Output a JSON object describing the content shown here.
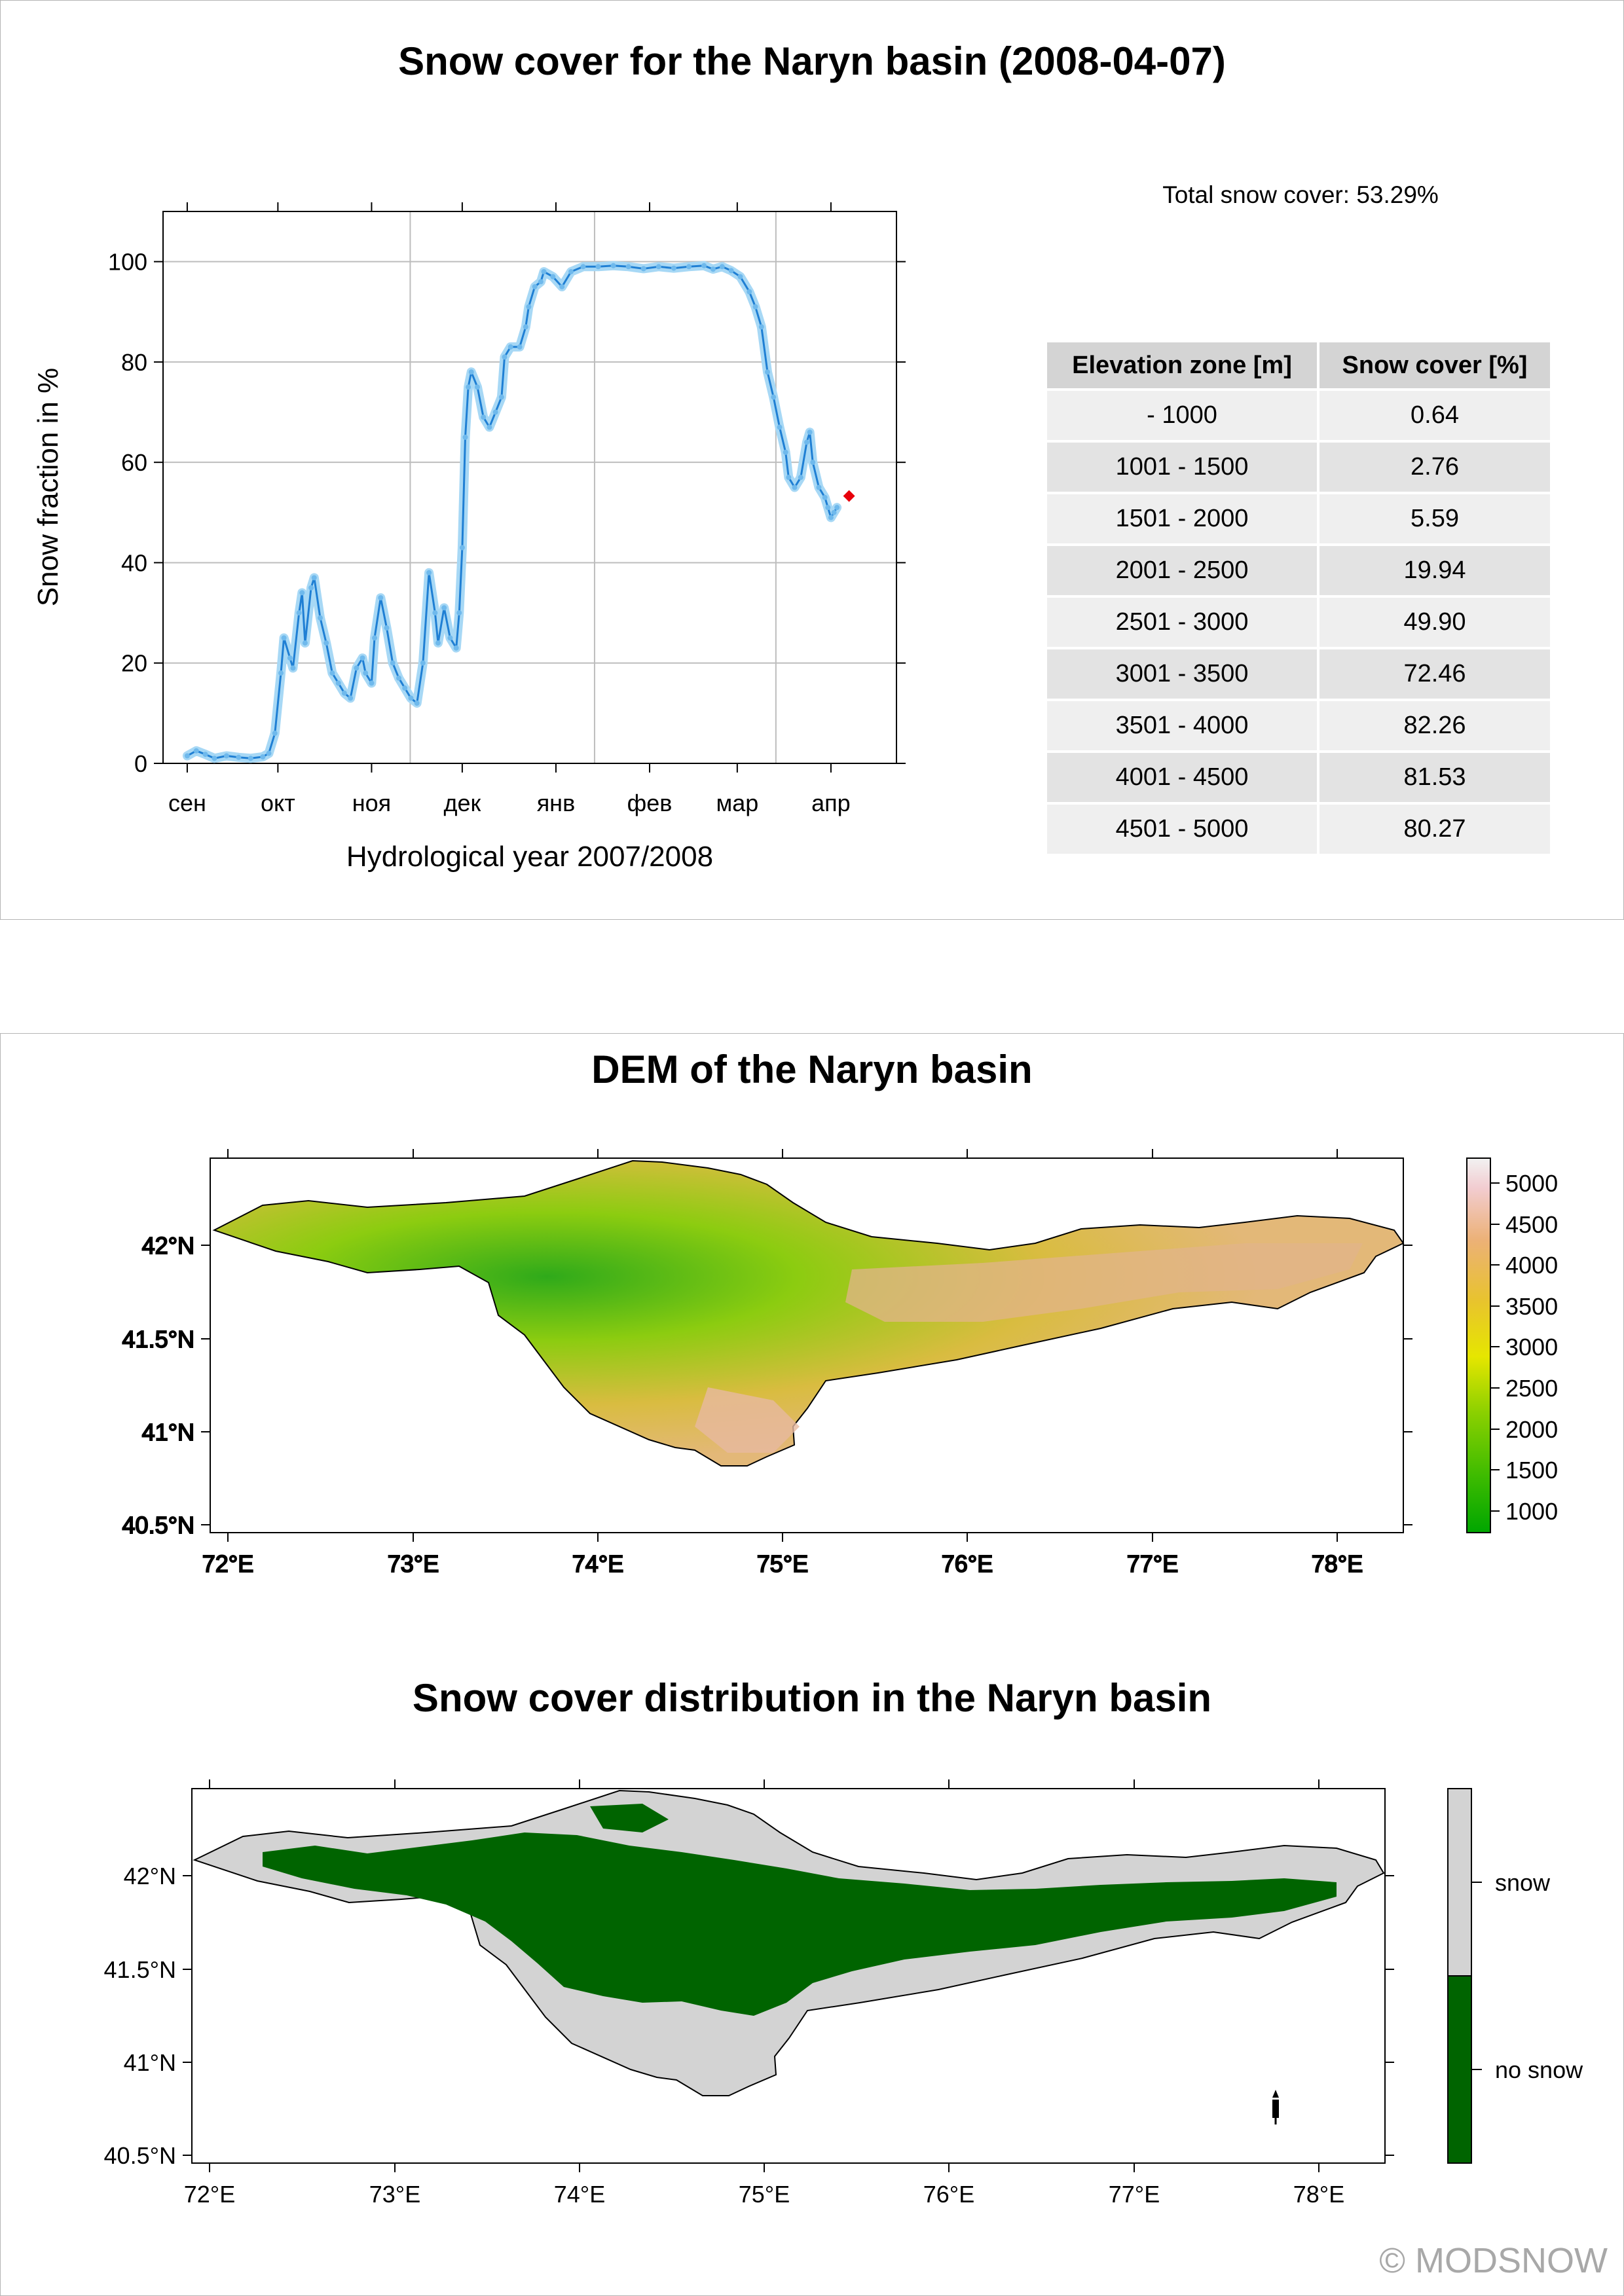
{
  "header": {
    "title": "Snow cover for the Naryn basin (2008-04-07)"
  },
  "summary": {
    "total_snow_cover": "Total snow cover: 53.29%"
  },
  "zone_table": {
    "headers": [
      "Elevation zone [m]",
      "Snow cover [%]"
    ],
    "rows": [
      [
        "- 1000",
        "0.64"
      ],
      [
        "1001 - 1500",
        "2.76"
      ],
      [
        "1501 - 2000",
        "5.59"
      ],
      [
        "2001 - 2500",
        "19.94"
      ],
      [
        "2501 - 3000",
        "49.90"
      ],
      [
        "3001 - 3500",
        "72.46"
      ],
      [
        "3501 - 4000",
        "82.26"
      ],
      [
        "4001 - 4500",
        "81.53"
      ],
      [
        "4501 - 5000",
        "80.27"
      ]
    ]
  },
  "colors": {
    "line": "#1f7fd4",
    "line_halo": "#a7d8f5",
    "current_point": "#e8000b",
    "snow": "#d3d3d3",
    "no_snow": "#006400",
    "panel_border": "#b5b5b5"
  },
  "dem_map": {
    "title": "DEM of the Naryn basin",
    "colorbar_ticks": [
      "5000",
      "4500",
      "4000",
      "3500",
      "3000",
      "2500",
      "2000",
      "1500",
      "1000"
    ]
  },
  "snow_map": {
    "title": "Snow cover distribution in the Naryn basin",
    "legend": [
      "snow",
      "no snow"
    ]
  },
  "map_axes": {
    "x_ticks": [
      "72°E",
      "73°E",
      "74°E",
      "75°E",
      "76°E",
      "77°E",
      "78°E"
    ],
    "y_ticks": [
      "42°N",
      "41.5°N",
      "41°N",
      "40.5°N"
    ]
  },
  "copyright": "© MODSNOW",
  "chart_data": {
    "type": "line",
    "title": "",
    "xlabel": "Hydrological year 2007/2008",
    "ylabel": "Snow fraction in %",
    "x_tick_labels": [
      "сен",
      "окт",
      "ноя",
      "дек",
      "янв",
      "фев",
      "мар",
      "апр"
    ],
    "ylim": [
      0,
      110
    ],
    "y_ticks": [
      0,
      20,
      40,
      60,
      80,
      100
    ],
    "grid": true,
    "current_value": {
      "date": "2008-04-07",
      "value": 53.29
    },
    "series": [
      {
        "points": [
          [
            "2007-09-01",
            1.5
          ],
          [
            "2007-09-04",
            2.5
          ],
          [
            "2007-09-07",
            1.8
          ],
          [
            "2007-09-10",
            1.0
          ],
          [
            "2007-09-14",
            1.5
          ],
          [
            "2007-09-18",
            1.2
          ],
          [
            "2007-09-22",
            1.0
          ],
          [
            "2007-09-26",
            1.3
          ],
          [
            "2007-09-28",
            2.0
          ],
          [
            "2007-09-30",
            6.0
          ],
          [
            "2007-10-02",
            18.0
          ],
          [
            "2007-10-03",
            25.0
          ],
          [
            "2007-10-05",
            21.0
          ],
          [
            "2007-10-06",
            19.0
          ],
          [
            "2007-10-08",
            30.0
          ],
          [
            "2007-10-09",
            34.0
          ],
          [
            "2007-10-10",
            24.0
          ],
          [
            "2007-10-12",
            35.0
          ],
          [
            "2007-10-13",
            37.0
          ],
          [
            "2007-10-15",
            29.0
          ],
          [
            "2007-10-17",
            24.0
          ],
          [
            "2007-10-19",
            18.0
          ],
          [
            "2007-10-21",
            16.0
          ],
          [
            "2007-10-23",
            14.0
          ],
          [
            "2007-10-25",
            13.0
          ],
          [
            "2007-10-27",
            19.0
          ],
          [
            "2007-10-29",
            21.0
          ],
          [
            "2007-10-30",
            18.0
          ],
          [
            "2007-11-01",
            16.0
          ],
          [
            "2007-11-02",
            25.0
          ],
          [
            "2007-11-04",
            33.0
          ],
          [
            "2007-11-06",
            27.0
          ],
          [
            "2007-11-08",
            20.0
          ],
          [
            "2007-11-10",
            17.0
          ],
          [
            "2007-11-12",
            15.0
          ],
          [
            "2007-11-14",
            13.0
          ],
          [
            "2007-11-16",
            12.0
          ],
          [
            "2007-11-18",
            20.0
          ],
          [
            "2007-11-20",
            38.0
          ],
          [
            "2007-11-22",
            30.0
          ],
          [
            "2007-11-23",
            24.0
          ],
          [
            "2007-11-25",
            31.0
          ],
          [
            "2007-11-27",
            25.0
          ],
          [
            "2007-11-29",
            23.0
          ],
          [
            "2007-11-30",
            30.0
          ],
          [
            "2007-12-01",
            43.0
          ],
          [
            "2007-12-02",
            65.0
          ],
          [
            "2007-12-03",
            75.0
          ],
          [
            "2007-12-04",
            78.0
          ],
          [
            "2007-12-06",
            75.0
          ],
          [
            "2007-12-08",
            69.0
          ],
          [
            "2007-12-10",
            67.0
          ],
          [
            "2007-12-12",
            70.0
          ],
          [
            "2007-12-14",
            73.0
          ],
          [
            "2007-12-15",
            81.0
          ],
          [
            "2007-12-17",
            83.0
          ],
          [
            "2007-12-20",
            83.0
          ],
          [
            "2007-12-22",
            87.0
          ],
          [
            "2007-12-23",
            91.0
          ],
          [
            "2007-12-25",
            95.0
          ],
          [
            "2007-12-27",
            96.0
          ],
          [
            "2007-12-28",
            98.0
          ],
          [
            "2007-12-31",
            97.0
          ],
          [
            "2008-01-03",
            95.0
          ],
          [
            "2008-01-06",
            98.0
          ],
          [
            "2008-01-10",
            99.0
          ],
          [
            "2008-01-15",
            99.0
          ],
          [
            "2008-01-20",
            99.2
          ],
          [
            "2008-01-25",
            99.0
          ],
          [
            "2008-01-30",
            98.6
          ],
          [
            "2008-02-04",
            99.0
          ],
          [
            "2008-02-09",
            98.7
          ],
          [
            "2008-02-14",
            99.0
          ],
          [
            "2008-02-19",
            99.2
          ],
          [
            "2008-02-22",
            98.5
          ],
          [
            "2008-02-25",
            99.0
          ],
          [
            "2008-02-28",
            98.2
          ],
          [
            "2008-03-02",
            97.0
          ],
          [
            "2008-03-05",
            94.0
          ],
          [
            "2008-03-07",
            91.0
          ],
          [
            "2008-03-09",
            87.0
          ],
          [
            "2008-03-11",
            78.0
          ],
          [
            "2008-03-13",
            73.0
          ],
          [
            "2008-03-15",
            67.0
          ],
          [
            "2008-03-17",
            62.0
          ],
          [
            "2008-03-18",
            57.0
          ],
          [
            "2008-03-20",
            55.0
          ],
          [
            "2008-03-22",
            57.0
          ],
          [
            "2008-03-24",
            64.0
          ],
          [
            "2008-03-25",
            66.0
          ],
          [
            "2008-03-26",
            60.0
          ],
          [
            "2008-03-28",
            55.0
          ],
          [
            "2008-03-30",
            53.0
          ],
          [
            "2008-03-31",
            51.0
          ],
          [
            "2008-04-01",
            49.0
          ],
          [
            "2008-04-02",
            50.0
          ],
          [
            "2008-04-03",
            51.0
          ]
        ]
      }
    ]
  }
}
